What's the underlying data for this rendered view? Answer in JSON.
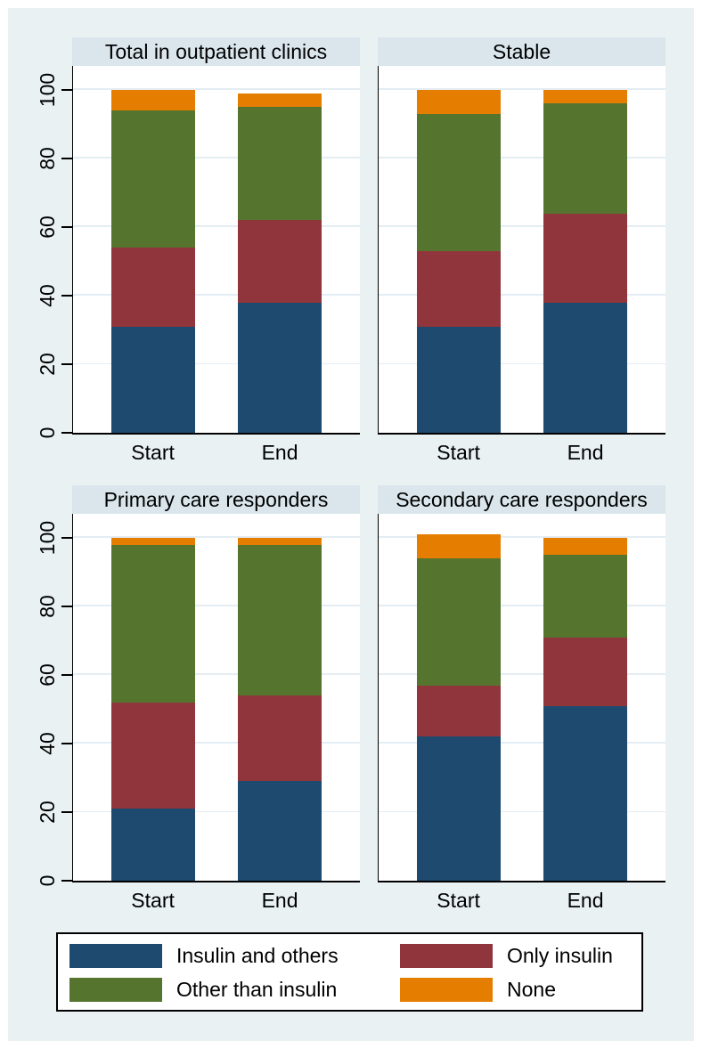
{
  "colors": {
    "background": "#e9f1f3",
    "title_strip": "#dae6ec",
    "plot_bg": "#ffffff",
    "gridline": "#e4edf4",
    "axis": "#000000",
    "navy": "#1d4a6e",
    "maroon": "#90353b",
    "forest_green": "#55752f",
    "orange": "#e57e00"
  },
  "chart_data": {
    "type": "bar",
    "stacked": true,
    "categories": [
      "Start",
      "End"
    ],
    "y_ticks": [
      0,
      20,
      40,
      60,
      80,
      100
    ],
    "y_max": 107,
    "grid": true,
    "series_order": [
      "Insulin and others",
      "Only insulin",
      "Other than insulin",
      "None"
    ],
    "series_colors": {
      "Insulin and others": "#1d4a6e",
      "Only insulin": "#90353b",
      "Other than insulin": "#55752f",
      "None": "#e57e00"
    },
    "panels": [
      {
        "title": "Total in outpatient clinics",
        "values": {
          "Start": [
            31,
            23,
            40,
            6
          ],
          "End": [
            38,
            24,
            33,
            4
          ]
        },
        "stack_tops": {
          "Start": [
            31,
            54,
            94,
            100
          ],
          "End": [
            38,
            62,
            95,
            99
          ]
        }
      },
      {
        "title": "Stable",
        "values": {
          "Start": [
            31,
            22,
            40,
            7
          ],
          "End": [
            38,
            26,
            32,
            4
          ]
        },
        "stack_tops": {
          "Start": [
            31,
            53,
            93,
            100
          ],
          "End": [
            38,
            64,
            96,
            100
          ]
        }
      },
      {
        "title": "Primary care responders",
        "values": {
          "Start": [
            21,
            31,
            46,
            2
          ],
          "End": [
            29,
            25,
            44,
            2
          ]
        },
        "stack_tops": {
          "Start": [
            21,
            52,
            98,
            100
          ],
          "End": [
            29,
            54,
            98,
            100
          ]
        }
      },
      {
        "title": "Secondary care responders",
        "values": {
          "Start": [
            42,
            15,
            37,
            7
          ],
          "End": [
            51,
            20,
            24,
            5
          ]
        },
        "stack_tops": {
          "Start": [
            42,
            57,
            94,
            101
          ],
          "End": [
            51,
            71,
            95,
            100
          ]
        }
      }
    ],
    "legend": {
      "position": "bottom",
      "items": [
        "Insulin and others",
        "Only insulin",
        "Other than insulin",
        "None"
      ]
    }
  }
}
